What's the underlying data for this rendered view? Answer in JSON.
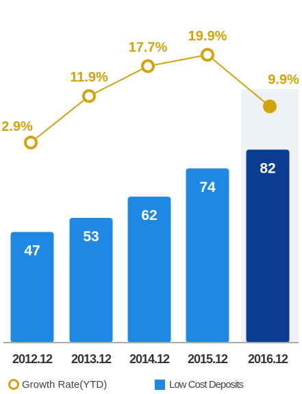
{
  "chart_data": {
    "type": "bar+line",
    "categories": [
      "2012.12",
      "2013.12",
      "2014.12",
      "2015.12",
      "2016.12"
    ],
    "series": [
      {
        "name": "Low Cost Deposits",
        "type": "bar",
        "values": [
          47,
          53,
          62,
          74,
          82
        ],
        "value_labels": [
          "47",
          "53",
          "62",
          "74",
          "82"
        ],
        "color": "#1e88e5",
        "highlight_color": "#0a3d91"
      },
      {
        "name": "Growth Rate(YTD)",
        "type": "line",
        "values": [
          2.9,
          11.9,
          17.7,
          19.9,
          9.9
        ],
        "value_labels": [
          "2.9%",
          "11.9%",
          "17.7%",
          "19.9%",
          "9.9%"
        ],
        "color": "#d3a30b"
      }
    ],
    "highlighted_category": "2016.12",
    "legend": {
      "position": "bottom",
      "growth_label": "Growth Rate(YTD)",
      "deposits_label": "Low Cost Deposits"
    }
  }
}
